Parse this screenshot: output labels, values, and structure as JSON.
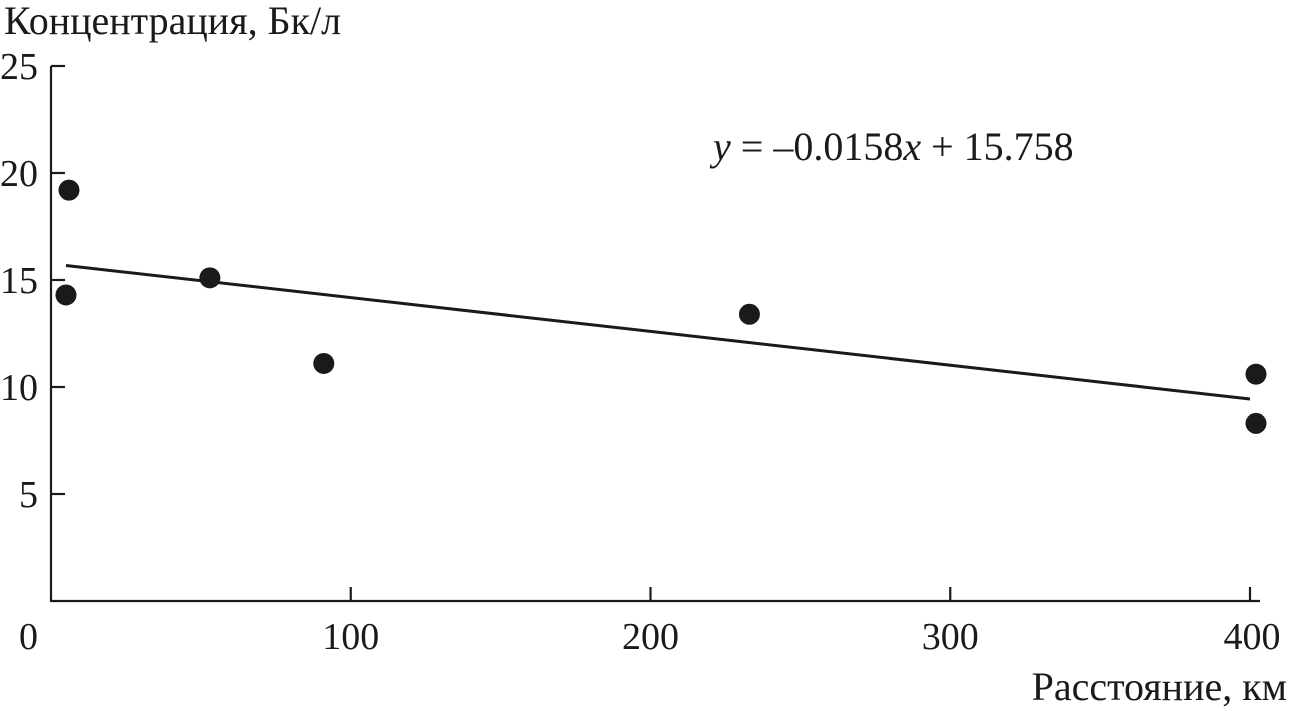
{
  "chart_data": {
    "type": "scatter",
    "title": "",
    "ylabel": "Концентрация, Бк/л",
    "xlabel": "Расстояние, км",
    "xlim": [
      0,
      400
    ],
    "ylim": [
      0,
      25
    ],
    "x_ticks": [
      0,
      100,
      200,
      300,
      400
    ],
    "y_ticks": [
      5,
      10,
      15,
      20,
      25
    ],
    "x_tick_labels": [
      "0",
      "100",
      "200",
      "300",
      "400"
    ],
    "y_tick_labels": [
      "5",
      "10",
      "15",
      "20",
      "25"
    ],
    "grid": false,
    "points": [
      {
        "x": 4,
        "y": 19.2
      },
      {
        "x": 3,
        "y": 14.3
      },
      {
        "x": 51,
        "y": 15.1
      },
      {
        "x": 89,
        "y": 11.1
      },
      {
        "x": 231,
        "y": 13.4
      },
      {
        "x": 400,
        "y": 10.6
      },
      {
        "x": 400,
        "y": 8.3
      }
    ],
    "trendline": {
      "slope": -0.0158,
      "intercept": 15.758,
      "x_range": [
        5,
        400
      ],
      "equation": {
        "y_var": "y",
        "rhs_prefix": " = –0.0158",
        "x_var": "x",
        "rhs_suffix": " + 15.758"
      }
    }
  }
}
